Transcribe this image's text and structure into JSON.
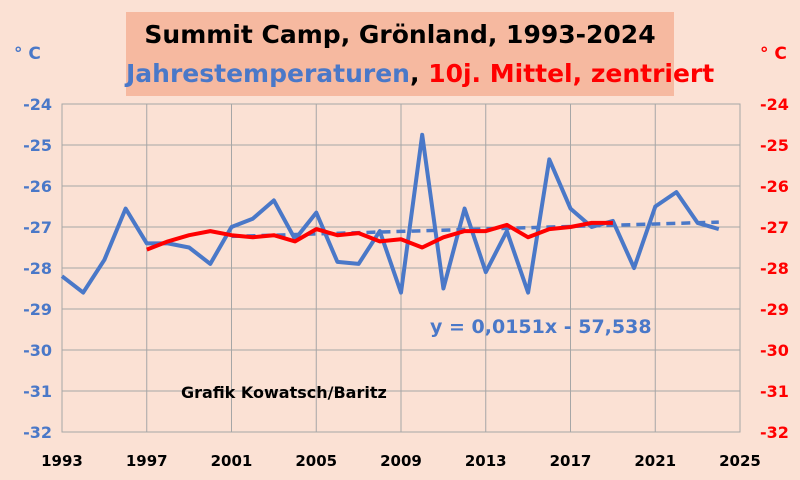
{
  "title": {
    "line1": "Summit Camp, Grönland, 1993-2024",
    "series_label": "Jahrestemperaturen",
    "separator": ", ",
    "mean_label": "10j. Mittel, zentriert"
  },
  "units": {
    "left": "° C",
    "right": "° C"
  },
  "annotations": {
    "equation": "y = 0,0151x - 57,538",
    "credit": "Grafik Kowatsch/Baritz"
  },
  "colors": {
    "background": "#fbe1d4",
    "title_box": "#f6b9a0",
    "annual": "#4a78c8",
    "mean": "#ff0000",
    "trend": "#4a78c8",
    "grid": "#a6a6a6"
  },
  "chart_data": {
    "type": "line",
    "xlim": [
      1993,
      2025
    ],
    "ylim": [
      -32,
      -24
    ],
    "x_ticks": [
      1993,
      1997,
      2001,
      2005,
      2009,
      2013,
      2017,
      2021,
      2025
    ],
    "y_ticks": [
      -24,
      -25,
      -26,
      -27,
      -28,
      -29,
      -30,
      -31,
      -32
    ],
    "grid": true,
    "series": [
      {
        "name": "Jahrestemperaturen",
        "x": [
          1993,
          1994,
          1995,
          1996,
          1997,
          1998,
          1999,
          2000,
          2001,
          2002,
          2003,
          2004,
          2005,
          2006,
          2007,
          2008,
          2009,
          2010,
          2011,
          2012,
          2013,
          2014,
          2015,
          2016,
          2017,
          2018,
          2019,
          2020,
          2021,
          2022,
          2023,
          2024
        ],
        "y": [
          -28.2,
          -28.6,
          -27.8,
          -26.55,
          -27.4,
          -27.4,
          -27.5,
          -27.9,
          -27.0,
          -26.8,
          -26.35,
          -27.3,
          -26.65,
          -27.85,
          -27.9,
          -27.1,
          -28.6,
          -24.75,
          -28.5,
          -26.55,
          -28.1,
          -27.1,
          -28.6,
          -25.35,
          -26.55,
          -27.0,
          -26.85,
          -28.0,
          -26.5,
          -26.15,
          -26.9,
          -27.05
        ]
      },
      {
        "name": "10j. Mittel, zentriert",
        "x": [
          1997,
          1998,
          1999,
          2000,
          2001,
          2002,
          2003,
          2004,
          2005,
          2006,
          2007,
          2008,
          2009,
          2010,
          2011,
          2012,
          2013,
          2014,
          2015,
          2016,
          2017,
          2018,
          2019
        ],
        "y": [
          -27.55,
          -27.35,
          -27.2,
          -27.1,
          -27.2,
          -27.25,
          -27.2,
          -27.35,
          -27.05,
          -27.2,
          -27.15,
          -27.35,
          -27.3,
          -27.5,
          -27.25,
          -27.1,
          -27.1,
          -26.95,
          -27.25,
          -27.05,
          -27.0,
          -26.9,
          -26.9
        ]
      },
      {
        "name": "Trend",
        "x": [
          2001,
          2024
        ],
        "y": [
          -27.23,
          -26.88
        ]
      }
    ]
  }
}
